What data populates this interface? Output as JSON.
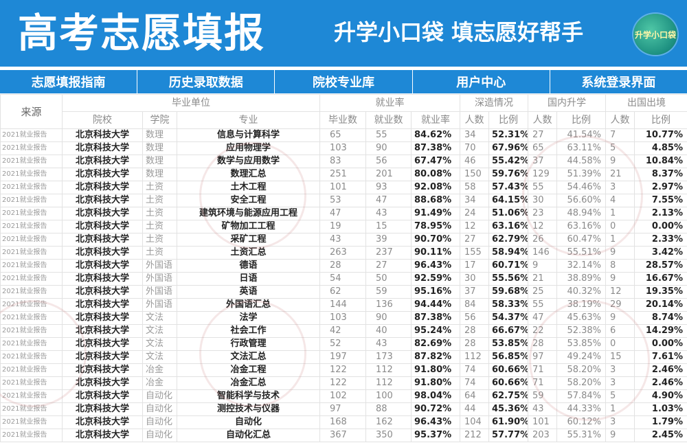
{
  "header": {
    "title": "高考志愿填报",
    "slogan": "升学小口袋  填志愿好帮手",
    "badge_text": "升学小口袋"
  },
  "nav": [
    {
      "label": "志愿填报指南"
    },
    {
      "label": "历史录取数据"
    },
    {
      "label": "院校专业库"
    },
    {
      "label": "用户中心"
    },
    {
      "label": "系统登录界面"
    }
  ],
  "table": {
    "group_headers": {
      "source": "来源",
      "employer": "毕业单位",
      "employment_rate": "就业率",
      "further_study": "深造情况",
      "domestic": "国内升学",
      "abroad": "出国出境"
    },
    "sub_headers": {
      "school": "院校",
      "college": "学院",
      "major": "专业",
      "graduates": "毕业数",
      "employed": "就业数",
      "rate": "就业率",
      "fs_count": "人数",
      "fs_ratio": "比例",
      "dom_count": "人数",
      "dom_ratio": "比例",
      "abr_count": "人数",
      "abr_ratio": "比例"
    },
    "rows": [
      [
        "2021就业报告",
        "北京科技大学",
        "数理",
        "信息与计算科学",
        "65",
        "55",
        "84.62%",
        "34",
        "52.31%",
        "27",
        "41.54%",
        "7",
        "10.77%"
      ],
      [
        "2021就业报告",
        "北京科技大学",
        "数理",
        "应用物理学",
        "103",
        "90",
        "87.38%",
        "70",
        "67.96%",
        "65",
        "63.11%",
        "5",
        "4.85%"
      ],
      [
        "2021就业报告",
        "北京科技大学",
        "数理",
        "数学与应用数学",
        "83",
        "56",
        "67.47%",
        "46",
        "55.42%",
        "37",
        "44.58%",
        "9",
        "10.84%"
      ],
      [
        "2021就业报告",
        "北京科技大学",
        "数理",
        "数理汇总",
        "251",
        "201",
        "80.08%",
        "150",
        "59.76%",
        "129",
        "51.39%",
        "21",
        "8.37%"
      ],
      [
        "2021就业报告",
        "北京科技大学",
        "土资",
        "土木工程",
        "101",
        "93",
        "92.08%",
        "58",
        "57.43%",
        "55",
        "54.46%",
        "3",
        "2.97%"
      ],
      [
        "2021就业报告",
        "北京科技大学",
        "土资",
        "安全工程",
        "53",
        "47",
        "88.68%",
        "34",
        "64.15%",
        "30",
        "56.60%",
        "4",
        "7.55%"
      ],
      [
        "2021就业报告",
        "北京科技大学",
        "土资",
        "建筑环境与能源应用工程",
        "47",
        "43",
        "91.49%",
        "24",
        "51.06%",
        "23",
        "48.94%",
        "1",
        "2.13%"
      ],
      [
        "2021就业报告",
        "北京科技大学",
        "土资",
        "矿物加工工程",
        "19",
        "15",
        "78.95%",
        "12",
        "63.16%",
        "12",
        "63.16%",
        "0",
        "0.00%"
      ],
      [
        "2021就业报告",
        "北京科技大学",
        "土资",
        "采矿工程",
        "43",
        "39",
        "90.70%",
        "27",
        "62.79%",
        "26",
        "60.47%",
        "1",
        "2.33%"
      ],
      [
        "2021就业报告",
        "北京科技大学",
        "土资",
        "土资汇总",
        "263",
        "237",
        "90.11%",
        "155",
        "58.94%",
        "146",
        "55.51%",
        "9",
        "3.42%"
      ],
      [
        "2021就业报告",
        "北京科技大学",
        "外国语",
        "德语",
        "28",
        "27",
        "96.43%",
        "17",
        "60.71%",
        "9",
        "32.14%",
        "8",
        "28.57%"
      ],
      [
        "2021就业报告",
        "北京科技大学",
        "外国语",
        "日语",
        "54",
        "50",
        "92.59%",
        "30",
        "55.56%",
        "21",
        "38.89%",
        "9",
        "16.67%"
      ],
      [
        "2021就业报告",
        "北京科技大学",
        "外国语",
        "英语",
        "62",
        "59",
        "95.16%",
        "37",
        "59.68%",
        "25",
        "40.32%",
        "12",
        "19.35%"
      ],
      [
        "2021就业报告",
        "北京科技大学",
        "外国语",
        "外国语汇总",
        "144",
        "136",
        "94.44%",
        "84",
        "58.33%",
        "55",
        "38.19%",
        "29",
        "20.14%"
      ],
      [
        "2021就业报告",
        "北京科技大学",
        "文法",
        "法学",
        "103",
        "90",
        "87.38%",
        "56",
        "54.37%",
        "47",
        "45.63%",
        "9",
        "8.74%"
      ],
      [
        "2021就业报告",
        "北京科技大学",
        "文法",
        "社会工作",
        "42",
        "40",
        "95.24%",
        "28",
        "66.67%",
        "22",
        "52.38%",
        "6",
        "14.29%"
      ],
      [
        "2021就业报告",
        "北京科技大学",
        "文法",
        "行政管理",
        "52",
        "43",
        "82.69%",
        "28",
        "53.85%",
        "28",
        "53.85%",
        "0",
        "0.00%"
      ],
      [
        "2021就业报告",
        "北京科技大学",
        "文法",
        "文法汇总",
        "197",
        "173",
        "87.82%",
        "112",
        "56.85%",
        "97",
        "49.24%",
        "15",
        "7.61%"
      ],
      [
        "2021就业报告",
        "北京科技大学",
        "冶金",
        "冶金工程",
        "122",
        "112",
        "91.80%",
        "74",
        "60.66%",
        "71",
        "58.20%",
        "3",
        "2.46%"
      ],
      [
        "2021就业报告",
        "北京科技大学",
        "冶金",
        "冶金汇总",
        "122",
        "112",
        "91.80%",
        "74",
        "60.66%",
        "71",
        "58.20%",
        "3",
        "2.46%"
      ],
      [
        "2021就业报告",
        "北京科技大学",
        "自动化",
        "智能科学与技术",
        "102",
        "100",
        "98.04%",
        "64",
        "62.75%",
        "59",
        "57.84%",
        "5",
        "4.90%"
      ],
      [
        "2021就业报告",
        "北京科技大学",
        "自动化",
        "测控技术与仪器",
        "97",
        "88",
        "90.72%",
        "44",
        "45.36%",
        "43",
        "44.33%",
        "1",
        "1.03%"
      ],
      [
        "2021就业报告",
        "北京科技大学",
        "自动化",
        "自动化",
        "168",
        "162",
        "96.43%",
        "104",
        "61.90%",
        "101",
        "60.12%",
        "3",
        "1.79%"
      ],
      [
        "2021就业报告",
        "北京科技大学",
        "自动化",
        "自动化汇总",
        "367",
        "350",
        "95.37%",
        "212",
        "57.77%",
        "203",
        "55.31%",
        "9",
        "2.45%"
      ]
    ]
  }
}
